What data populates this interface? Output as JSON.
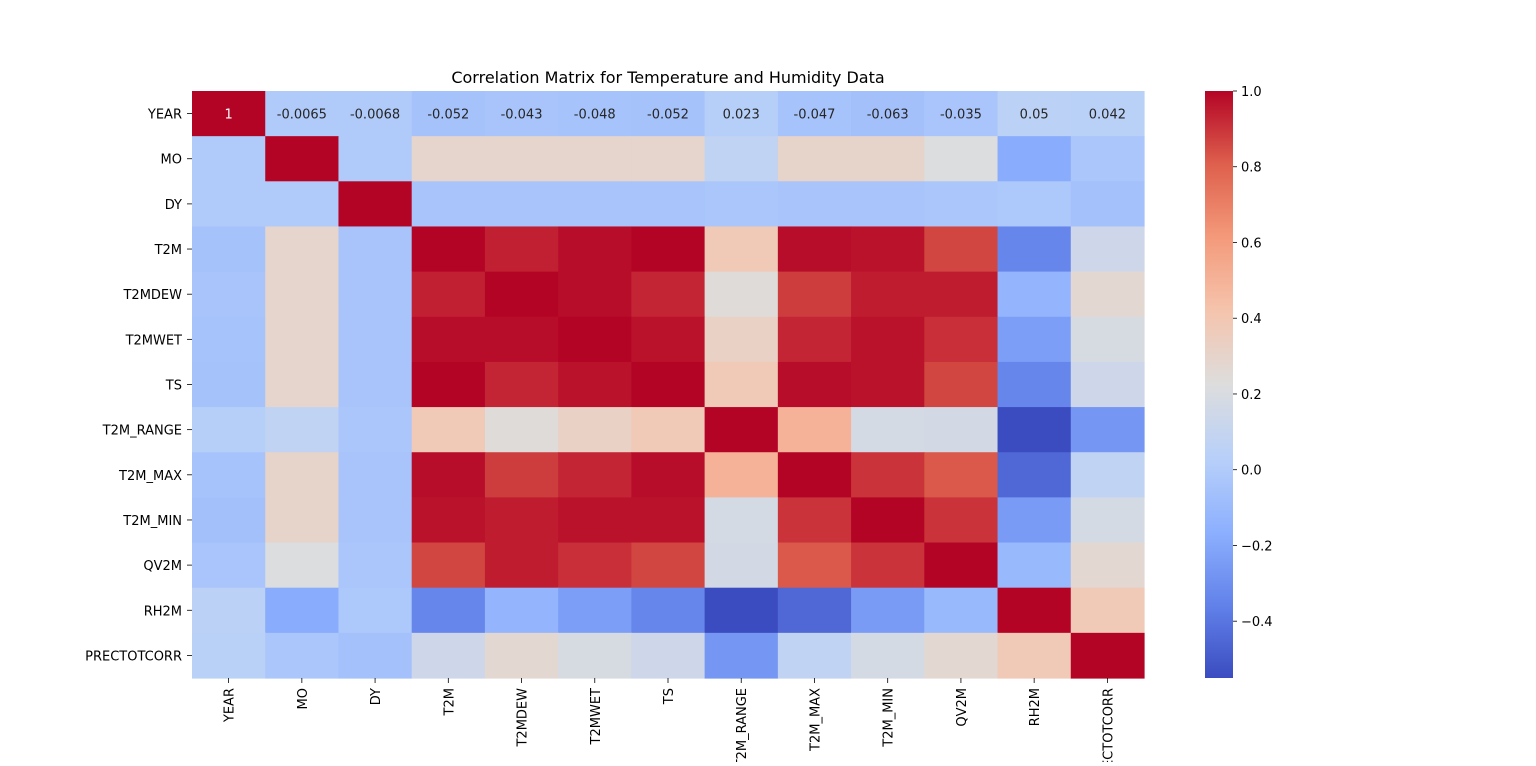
{
  "chart_data": {
    "type": "heatmap",
    "title": "Correlation Matrix for Temperature and Humidity Data",
    "xlabel": "",
    "ylabel": "",
    "labels": [
      "YEAR",
      "MO",
      "DY",
      "T2M",
      "T2MDEW",
      "T2MWET",
      "TS",
      "T2M_RANGE",
      "T2M_MAX",
      "T2M_MIN",
      "QV2M",
      "RH2M",
      "PRECTOTCORR"
    ],
    "colormap": "coolwarm",
    "color_range": [
      -0.55,
      1.0
    ],
    "colorbar_ticks": [
      1.0,
      0.8,
      0.6,
      0.4,
      0.2,
      0.0,
      -0.2,
      -0.4
    ],
    "colorbar_tick_labels": [
      "1.0",
      "0.8",
      "0.6",
      "0.4",
      "0.2",
      "0.0",
      "−0.2",
      "−0.4"
    ],
    "annotated_row": {
      "row": "YEAR",
      "labels": [
        "1",
        "-0.0065",
        "-0.0068",
        "-0.052",
        "-0.043",
        "-0.048",
        "-0.052",
        "0.023",
        "-0.047",
        "-0.063",
        "-0.035",
        "0.05",
        "0.042"
      ]
    },
    "matrix": [
      [
        1,
        -0.0065,
        -0.0068,
        -0.052,
        -0.043,
        -0.048,
        -0.052,
        0.023,
        -0.047,
        -0.063,
        -0.035,
        0.05,
        0.042
      ],
      [
        -0.0065,
        1,
        -0.005,
        0.29,
        0.29,
        0.29,
        0.29,
        0.08,
        0.3,
        0.3,
        0.22,
        -0.18,
        -0.03
      ],
      [
        -0.0068,
        -0.005,
        1,
        -0.04,
        -0.04,
        -0.04,
        -0.04,
        -0.03,
        -0.04,
        -0.04,
        -0.03,
        -0.02,
        -0.06
      ],
      [
        -0.052,
        0.29,
        -0.04,
        1,
        0.94,
        0.98,
        1.0,
        0.38,
        0.98,
        0.97,
        0.86,
        -0.34,
        0.14
      ],
      [
        -0.043,
        0.29,
        -0.04,
        0.94,
        1,
        0.98,
        0.93,
        0.24,
        0.88,
        0.95,
        0.95,
        -0.13,
        0.27
      ],
      [
        -0.048,
        0.29,
        -0.04,
        0.98,
        0.98,
        1,
        0.97,
        0.32,
        0.93,
        0.97,
        0.91,
        -0.24,
        0.19
      ],
      [
        -0.052,
        0.29,
        -0.04,
        1.0,
        0.93,
        0.97,
        1,
        0.38,
        0.98,
        0.97,
        0.86,
        -0.34,
        0.14
      ],
      [
        0.023,
        0.08,
        -0.03,
        0.38,
        0.24,
        0.32,
        0.38,
        1,
        0.5,
        0.18,
        0.17,
        -0.55,
        -0.27
      ],
      [
        -0.047,
        0.3,
        -0.04,
        0.98,
        0.88,
        0.93,
        0.98,
        0.5,
        1,
        0.9,
        0.82,
        -0.45,
        0.08
      ],
      [
        -0.063,
        0.3,
        -0.04,
        0.97,
        0.95,
        0.97,
        0.97,
        0.18,
        0.9,
        1,
        0.9,
        -0.25,
        0.18
      ],
      [
        -0.035,
        0.22,
        -0.03,
        0.86,
        0.95,
        0.91,
        0.86,
        0.17,
        0.82,
        0.9,
        1,
        -0.11,
        0.27
      ],
      [
        0.05,
        -0.18,
        -0.02,
        -0.34,
        -0.13,
        -0.24,
        -0.34,
        -0.55,
        -0.45,
        -0.25,
        -0.11,
        1,
        0.38
      ],
      [
        0.042,
        -0.03,
        -0.06,
        0.14,
        0.27,
        0.19,
        0.14,
        -0.27,
        0.08,
        0.18,
        0.27,
        0.38,
        1
      ]
    ],
    "grid": false
  }
}
